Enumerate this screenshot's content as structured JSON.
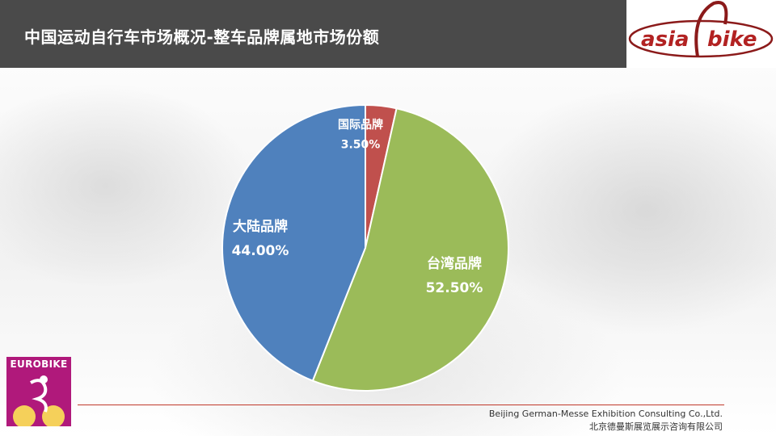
{
  "page": {
    "title": "中国运动自行车市场概况-整车品牌属地市场份额"
  },
  "logo": {
    "text_left": "asia",
    "text_right": "bike"
  },
  "eurobike": {
    "text": "EUROBIKE"
  },
  "footer": {
    "company_en": "Beijing German-Messe Exhibition Consulting Co.,Ltd.",
    "company_cn": "北京德曼斯展览展示咨询有限公司"
  },
  "chart_data": {
    "type": "pie",
    "title": "",
    "slices": [
      {
        "label": "国际品牌",
        "value": 3.5,
        "display": "3.50%",
        "color": "#c0504d"
      },
      {
        "label": "台湾品牌",
        "value": 52.5,
        "display": "52.50%",
        "color": "#9bbb59"
      },
      {
        "label": "大陆品牌",
        "value": 44.0,
        "display": "44.00%",
        "color": "#4f81bd"
      }
    ],
    "start_angle_deg": 0,
    "direction": "clockwise",
    "labels_inside": true,
    "legend": "none"
  }
}
